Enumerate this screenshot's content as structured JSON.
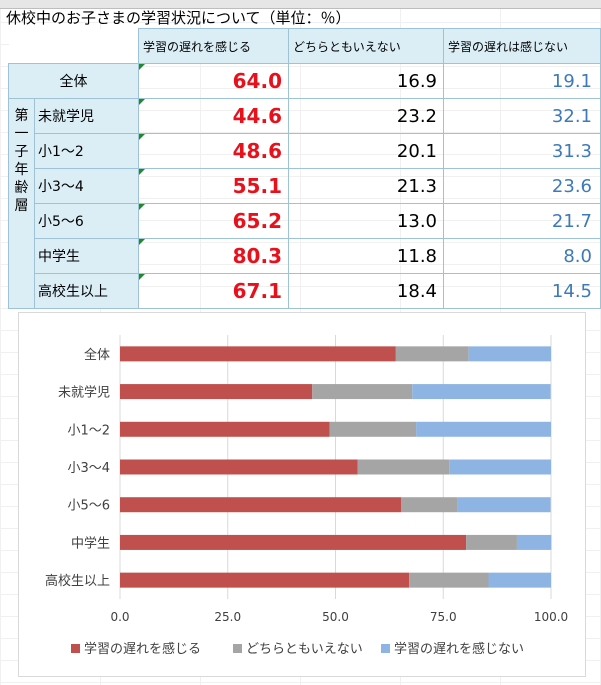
{
  "title": "休校中のお子さまの学習状況について（単位：％）",
  "table": {
    "headers": [
      "学習の遅れを感じる",
      "どちらともいえない",
      "学習の遅れは感じない"
    ],
    "group_label": "第一子年齢層",
    "rows": [
      {
        "label": "全体",
        "v1": "64.0",
        "v2": "16.9",
        "v3": "19.1"
      },
      {
        "label": "未就学児",
        "v1": "44.6",
        "v2": "23.2",
        "v3": "32.1"
      },
      {
        "label": "小1～2",
        "v1": "48.6",
        "v2": "20.1",
        "v3": "31.3"
      },
      {
        "label": "小3～4",
        "v1": "55.1",
        "v2": "21.3",
        "v3": "23.6"
      },
      {
        "label": "小5～6",
        "v1": "65.2",
        "v2": "13.0",
        "v3": "21.7"
      },
      {
        "label": "中学生",
        "v1": "80.3",
        "v2": "11.8",
        "v3": "8.0"
      },
      {
        "label": "高校生以上",
        "v1": "67.1",
        "v2": "18.4",
        "v3": "14.5"
      }
    ]
  },
  "colors": {
    "series1": "#c0504d",
    "series2": "#a5a5a5",
    "series3": "#8eb4e3",
    "value_red": "#e8101b",
    "value_blue": "#3e7ab8"
  },
  "chart_data": {
    "type": "bar",
    "orientation": "horizontal",
    "stacked": true,
    "categories": [
      "全体",
      "未就学児",
      "小1～2",
      "小3～4",
      "小5～6",
      "中学生",
      "高校生以上"
    ],
    "series": [
      {
        "name": "学習の遅れを感じる",
        "color": "#c0504d",
        "values": [
          64.0,
          44.6,
          48.6,
          55.1,
          65.2,
          80.3,
          67.1
        ]
      },
      {
        "name": "どちらともいえない",
        "color": "#a5a5a5",
        "values": [
          16.9,
          23.2,
          20.1,
          21.3,
          13.0,
          11.8,
          18.4
        ]
      },
      {
        "name": "学習の遅れを感じない",
        "color": "#8eb4e3",
        "values": [
          19.1,
          32.1,
          31.3,
          23.6,
          21.7,
          8.0,
          14.5
        ]
      }
    ],
    "xlim": [
      0,
      100
    ],
    "xticks": [
      "0.0",
      "25.0",
      "50.0",
      "75.0",
      "100.0"
    ],
    "grid": true,
    "legend_position": "bottom"
  }
}
